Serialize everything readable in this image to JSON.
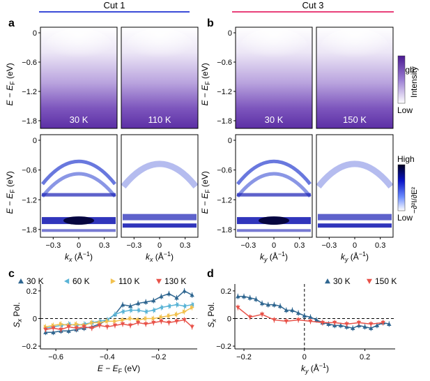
{
  "panels": {
    "a": {
      "letter": "a",
      "header": "Cut 1",
      "header_color": "#3b4bd8"
    },
    "b": {
      "letter": "b",
      "header": "Cut 3",
      "header_color": "#e8407a"
    },
    "c": {
      "letter": "c"
    },
    "d": {
      "letter": "d"
    }
  },
  "arpes": {
    "temps_cut1": [
      "30 K",
      "110 K"
    ],
    "temps_cut3": [
      "30 K",
      "150 K"
    ],
    "ylabel_pre": "E − E",
    "ylabel_sub": "F",
    "ylabel_post": " (eV)",
    "yticks": [
      "0",
      "−0.6",
      "−1.2",
      "−1.8"
    ],
    "xticks": [
      "−0.3",
      "0",
      "0.3"
    ],
    "xlabel_kx_pre": "k",
    "xlabel_kx_sub": "x",
    "xlabel_ky_sub": "y",
    "xlabel_unit": " (Å",
    "xlabel_unit_sup": "−1",
    "xlabel_close": ")",
    "colorbar_top": {
      "high": "High",
      "low": "Low",
      "label": "Intensity",
      "color": "#5a1a9c"
    },
    "colorbar_bottom": {
      "high": "High",
      "low": "Low",
      "label": "−∂²I/∂E²",
      "color": "#0b0b55"
    }
  },
  "chart_data": [
    {
      "type": "line",
      "panel": "c",
      "xlabel": "E − EF (eV)",
      "ylabel": "Sx Pol.",
      "xlim": [
        -0.66,
        -0.05
      ],
      "ylim": [
        -0.22,
        0.25
      ],
      "xticks": [
        "−0.6",
        "−0.4",
        "−0.2"
      ],
      "yticks": [
        "−0.2",
        "0",
        "0.2"
      ],
      "series": [
        {
          "name": "30 K",
          "color": "#2f6690",
          "marker": "triangle-up",
          "x": [
            -0.64,
            -0.61,
            -0.58,
            -0.55,
            -0.52,
            -0.49,
            -0.46,
            -0.43,
            -0.4,
            -0.37,
            -0.34,
            -0.31,
            -0.28,
            -0.25,
            -0.22,
            -0.19,
            -0.16,
            -0.13,
            -0.1,
            -0.07
          ],
          "y": [
            -0.1,
            -0.1,
            -0.09,
            -0.09,
            -0.08,
            -0.07,
            -0.06,
            -0.04,
            -0.01,
            0.03,
            0.1,
            0.09,
            0.11,
            0.12,
            0.13,
            0.16,
            0.18,
            0.15,
            0.2,
            0.17
          ]
        },
        {
          "name": "60 K",
          "color": "#5ab4d6",
          "marker": "triangle-left",
          "x": [
            -0.64,
            -0.61,
            -0.58,
            -0.55,
            -0.52,
            -0.49,
            -0.46,
            -0.43,
            -0.4,
            -0.37,
            -0.34,
            -0.31,
            -0.28,
            -0.25,
            -0.22,
            -0.19,
            -0.16,
            -0.13,
            -0.1,
            -0.07
          ],
          "y": [
            -0.07,
            -0.06,
            -0.05,
            -0.04,
            -0.05,
            -0.04,
            -0.03,
            -0.02,
            -0.01,
            0.03,
            0.05,
            0.06,
            0.06,
            0.05,
            0.06,
            0.08,
            0.09,
            0.1,
            0.09,
            0.1
          ]
        },
        {
          "name": "110 K",
          "color": "#f2c14e",
          "marker": "triangle-right",
          "x": [
            -0.64,
            -0.61,
            -0.58,
            -0.55,
            -0.52,
            -0.49,
            -0.46,
            -0.43,
            -0.4,
            -0.37,
            -0.34,
            -0.31,
            -0.28,
            -0.25,
            -0.22,
            -0.19,
            -0.16,
            -0.13,
            -0.1,
            -0.07
          ],
          "y": [
            -0.06,
            -0.05,
            -0.04,
            -0.05,
            -0.04,
            -0.05,
            -0.03,
            -0.03,
            -0.02,
            -0.02,
            -0.01,
            0.0,
            -0.01,
            0.0,
            0.0,
            0.01,
            0.02,
            0.03,
            0.05,
            0.08
          ]
        },
        {
          "name": "130 K",
          "color": "#e8534a",
          "marker": "triangle-down",
          "x": [
            -0.64,
            -0.61,
            -0.58,
            -0.55,
            -0.52,
            -0.49,
            -0.46,
            -0.43,
            -0.4,
            -0.37,
            -0.34,
            -0.31,
            -0.28,
            -0.25,
            -0.22,
            -0.19,
            -0.16,
            -0.13,
            -0.1,
            -0.07
          ],
          "y": [
            -0.08,
            -0.07,
            -0.08,
            -0.06,
            -0.07,
            -0.06,
            -0.07,
            -0.05,
            -0.06,
            -0.05,
            -0.04,
            -0.05,
            -0.03,
            -0.04,
            -0.03,
            -0.02,
            -0.03,
            -0.02,
            -0.01,
            -0.06
          ]
        }
      ]
    },
    {
      "type": "line",
      "panel": "d",
      "xlabel": "ky (Å−1)",
      "ylabel": "Sx Pol.",
      "xlim": [
        -0.23,
        0.3
      ],
      "ylim": [
        -0.22,
        0.25
      ],
      "xticks": [
        "−0.2",
        "0",
        "0.2"
      ],
      "yticks": [
        "−0.2",
        "0",
        "0.2"
      ],
      "series": [
        {
          "name": "30 K",
          "color": "#2f6690",
          "marker": "triangle-up",
          "x": [
            -0.22,
            -0.2,
            -0.18,
            -0.16,
            -0.14,
            -0.12,
            -0.1,
            -0.08,
            -0.06,
            -0.04,
            -0.02,
            0.0,
            0.02,
            0.04,
            0.06,
            0.08,
            0.1,
            0.12,
            0.14,
            0.16,
            0.18,
            0.2,
            0.22,
            0.24,
            0.26,
            0.28
          ],
          "y": [
            0.16,
            0.16,
            0.15,
            0.14,
            0.11,
            0.1,
            0.1,
            0.09,
            0.06,
            0.06,
            0.04,
            0.02,
            0.01,
            -0.01,
            -0.03,
            -0.04,
            -0.05,
            -0.05,
            -0.06,
            -0.07,
            -0.05,
            -0.06,
            -0.07,
            -0.05,
            -0.03,
            -0.04
          ]
        },
        {
          "name": "150 K",
          "color": "#e8534a",
          "marker": "triangle-down",
          "x": [
            -0.22,
            -0.18,
            -0.14,
            -0.1,
            -0.06,
            -0.02,
            0.02,
            0.06,
            0.1,
            0.14,
            0.18,
            0.22,
            0.26
          ],
          "y": [
            0.08,
            0.01,
            0.03,
            -0.01,
            -0.02,
            -0.01,
            -0.02,
            -0.03,
            -0.03,
            -0.04,
            -0.03,
            -0.04,
            -0.03
          ]
        }
      ]
    }
  ]
}
